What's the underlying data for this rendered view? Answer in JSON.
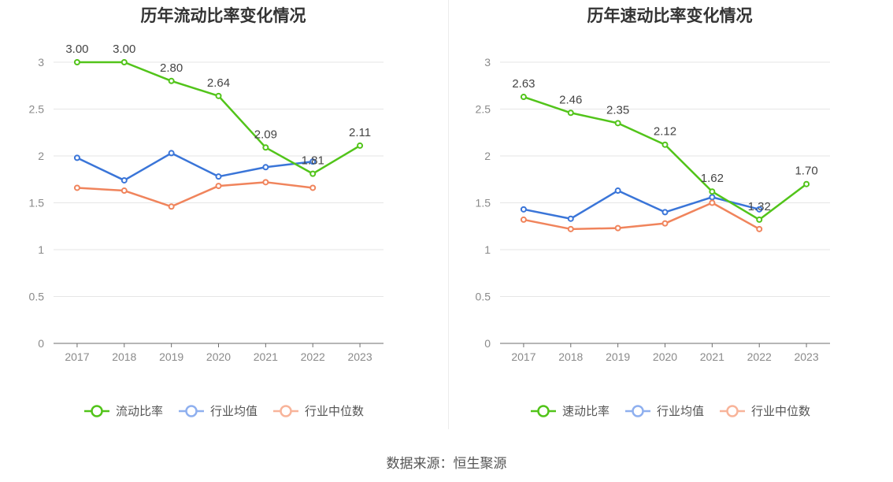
{
  "chart_data": [
    {
      "type": "line",
      "title": "历年流动比率变化情况",
      "categories": [
        "2017",
        "2018",
        "2019",
        "2020",
        "2021",
        "2022",
        "2023"
      ],
      "ylim": [
        0,
        3
      ],
      "yticks": [
        "0",
        "0.5",
        "1",
        "1.5",
        "2",
        "2.5",
        "3"
      ],
      "grid": true,
      "legend_position": "bottom",
      "series": [
        {
          "name": "流动比率",
          "color": "#52c41a",
          "values": [
            3.0,
            3.0,
            2.8,
            2.64,
            2.09,
            1.81,
            2.11
          ],
          "labels": [
            "3.00",
            "3.00",
            "2.80",
            "2.64",
            "2.09",
            "1.81",
            "2.11"
          ]
        },
        {
          "name": "行业均值",
          "color": "#3a75d8",
          "values": [
            1.98,
            1.74,
            2.03,
            1.78,
            1.88,
            1.94,
            null
          ]
        },
        {
          "name": "行业中位数",
          "color": "#f0845c",
          "values": [
            1.66,
            1.63,
            1.46,
            1.68,
            1.72,
            1.66,
            null
          ]
        }
      ]
    },
    {
      "type": "line",
      "title": "历年速动比率变化情况",
      "categories": [
        "2017",
        "2018",
        "2019",
        "2020",
        "2021",
        "2022",
        "2023"
      ],
      "ylim": [
        0,
        3
      ],
      "yticks": [
        "0",
        "0.5",
        "1",
        "1.5",
        "2",
        "2.5",
        "3"
      ],
      "grid": true,
      "legend_position": "bottom",
      "series": [
        {
          "name": "速动比率",
          "color": "#52c41a",
          "values": [
            2.63,
            2.46,
            2.35,
            2.12,
            1.62,
            1.32,
            1.7
          ],
          "labels": [
            "2.63",
            "2.46",
            "2.35",
            "2.12",
            "1.62",
            "1.32",
            "1.70"
          ]
        },
        {
          "name": "行业均值",
          "color": "#3a75d8",
          "values": [
            1.43,
            1.33,
            1.63,
            1.4,
            1.56,
            1.43,
            null
          ]
        },
        {
          "name": "行业中位数",
          "color": "#f0845c",
          "values": [
            1.32,
            1.22,
            1.23,
            1.28,
            1.5,
            1.22,
            null
          ]
        }
      ]
    }
  ],
  "legend_icon_colors": [
    "#52c41a",
    "#8fb0ef",
    "#f8b49a"
  ],
  "source": "数据来源：恒生聚源"
}
